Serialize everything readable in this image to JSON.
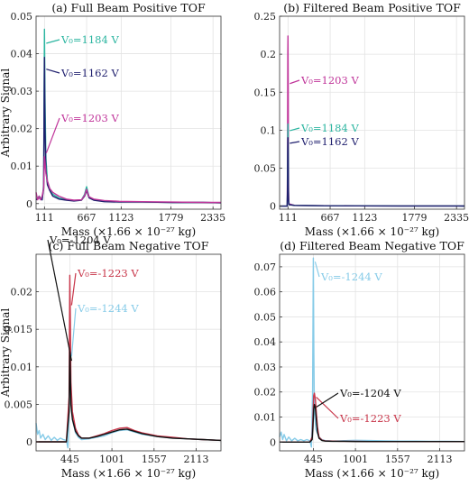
{
  "chart_data": [
    {
      "type": "line",
      "title": "(a) Full Beam Positive TOF",
      "xlabel": "Mass (×1.66 × 10⁻²⁷ kg)",
      "ylabel": "Arbitrary Signal",
      "xlim": [
        0,
        2440
      ],
      "ylim": [
        -0.0015,
        0.05
      ],
      "xticks": [
        111,
        667,
        1123,
        1779,
        2335
      ],
      "yticks": [
        0,
        0.01,
        0.02,
        0.03,
        0.04,
        0.05
      ],
      "ytick_labels": [
        "0",
        "0.01",
        "0.02",
        "0.03",
        "0.04",
        "0.05"
      ],
      "grid": true,
      "series": [
        {
          "name": "V₀=1184 V",
          "color": "#2bb5a0",
          "x": [
            0,
            40,
            80,
            100,
            106,
            111,
            118,
            130,
            150,
            180,
            220,
            300,
            400,
            500,
            600,
            640,
            667,
            700,
            760,
            900,
            1100,
            1400,
            1800,
            2200,
            2440
          ],
          "y": [
            0.001,
            0.002,
            0.001,
            0.005,
            0.03,
            0.0465,
            0.028,
            0.012,
            0.006,
            0.004,
            0.0025,
            0.0015,
            0.001,
            0.0008,
            0.001,
            0.0025,
            0.0045,
            0.0018,
            0.001,
            0.0006,
            0.0005,
            0.0004,
            0.0003,
            0.0003,
            0.0002
          ]
        },
        {
          "name": "V₀=1162 V",
          "color": "#1f1f6e",
          "x": [
            0,
            40,
            80,
            100,
            106,
            111,
            118,
            130,
            150,
            180,
            220,
            300,
            400,
            500,
            600,
            640,
            667,
            700,
            760,
            900,
            1100,
            1400,
            1800,
            2200,
            2440
          ],
          "y": [
            0.001,
            0.0015,
            0.001,
            0.004,
            0.025,
            0.039,
            0.02,
            0.009,
            0.005,
            0.0035,
            0.002,
            0.0012,
            0.0009,
            0.0007,
            0.0009,
            0.002,
            0.0035,
            0.0015,
            0.0009,
            0.0005,
            0.0004,
            0.0004,
            0.0003,
            0.0003,
            0.0002
          ]
        },
        {
          "name": "V₀=1203 V",
          "color": "#c0359a",
          "x": [
            0,
            20,
            40,
            60,
            80,
            100,
            106,
            111,
            118,
            130,
            150,
            180,
            220,
            300,
            400,
            500,
            600,
            640,
            667,
            700,
            760,
            900,
            1100,
            1400,
            1800,
            2200,
            2440
          ],
          "y": [
            0.003,
            0.001,
            0.002,
            0.001,
            0.002,
            0.004,
            0.009,
            0.0125,
            0.011,
            0.008,
            0.006,
            0.004,
            0.003,
            0.002,
            0.0012,
            0.0009,
            0.001,
            0.0022,
            0.0038,
            0.0018,
            0.0012,
            0.0008,
            0.0006,
            0.0005,
            0.0004,
            0.0003,
            0.0003
          ]
        }
      ]
    },
    {
      "type": "line",
      "title": "(b) Filtered Beam Positive TOF",
      "xlabel": "Mass (×1.66 × 10⁻²⁷ kg)",
      "ylabel": "",
      "xlim": [
        0,
        2440
      ],
      "ylim": [
        -0.004,
        0.25
      ],
      "xticks": [
        111,
        667,
        1123,
        1779,
        2335
      ],
      "yticks": [
        0,
        0.05,
        0.1,
        0.15,
        0.2,
        0.25
      ],
      "ytick_labels": [
        "0",
        "0.05",
        "0.1",
        "0.15",
        "0.2",
        "0.25"
      ],
      "grid": true,
      "series": [
        {
          "name": "V₀=1203 V",
          "color": "#c0359a",
          "x": [
            0,
            100,
            104,
            108,
            111,
            114,
            118,
            124,
            200,
            600,
            1000,
            1600,
            2200,
            2440
          ],
          "y": [
            0.0,
            0.0,
            0.04,
            0.2,
            0.224,
            0.15,
            0.02,
            0.003,
            0.001,
            0.0005,
            0.0004,
            0.0003,
            0.0003,
            0.0002
          ]
        },
        {
          "name": "V₀=1184 V",
          "color": "#2bb5a0",
          "x": [
            0,
            100,
            104,
            108,
            111,
            114,
            118,
            124,
            200,
            600,
            1000,
            1600,
            2200,
            2440
          ],
          "y": [
            0.0,
            0.0,
            0.02,
            0.09,
            0.108,
            0.07,
            0.01,
            0.002,
            0.001,
            0.0005,
            0.0004,
            0.0003,
            0.0003,
            0.0002
          ]
        },
        {
          "name": "V₀=1162 V",
          "color": "#1f1f6e",
          "x": [
            0,
            100,
            104,
            108,
            111,
            114,
            118,
            124,
            200,
            600,
            1000,
            1600,
            2200,
            2440
          ],
          "y": [
            0.0,
            0.0,
            0.015,
            0.075,
            0.09,
            0.06,
            0.008,
            0.002,
            0.001,
            0.0005,
            0.0004,
            0.0003,
            0.0003,
            0.0002
          ]
        }
      ]
    },
    {
      "type": "line",
      "title": "(c) Full Beam Negative TOF",
      "xlabel": "Mass (×1.66 × 10⁻²⁷ kg)",
      "ylabel": "Arbitrary Signal",
      "xlim": [
        0,
        2440
      ],
      "ylim": [
        -0.0012,
        0.025
      ],
      "xticks": [
        445,
        1001,
        1557,
        2113
      ],
      "yticks": [
        0,
        0.005,
        0.01,
        0.015,
        0.02
      ],
      "ytick_labels": [
        "0",
        "0.005",
        "0.01",
        "0.015",
        "0.02"
      ],
      "grid": true,
      "series": [
        {
          "name": "V₀=-1244 V",
          "color": "#86cbe8",
          "x": [
            0,
            20,
            40,
            60,
            90,
            120,
            160,
            200,
            240,
            280,
            320,
            360,
            400,
            420,
            436,
            445,
            452,
            460,
            480,
            520,
            560,
            600,
            700,
            800,
            900,
            1000,
            1100,
            1200,
            1300,
            1400,
            1600,
            1800,
            2000,
            2200,
            2440
          ],
          "y": [
            0.0025,
            0.001,
            0.0015,
            0.0005,
            0.001,
            0.0003,
            0.0008,
            0.0002,
            0.0006,
            0.0002,
            0.0005,
            0.0003,
            0.0002,
            -0.0008,
            0.004,
            0.0158,
            0.011,
            0.006,
            0.003,
            0.0012,
            0.0006,
            0.0003,
            0.0004,
            0.0006,
            0.0008,
            0.0012,
            0.0015,
            0.0016,
            0.0013,
            0.001,
            0.0007,
            0.0005,
            0.0004,
            0.0003,
            0.0002
          ]
        },
        {
          "name": "V₀=-1223 V",
          "color": "#c8364a",
          "x": [
            0,
            100,
            200,
            300,
            400,
            436,
            445,
            452,
            460,
            480,
            520,
            560,
            600,
            700,
            800,
            900,
            1000,
            1100,
            1200,
            1300,
            1400,
            1600,
            1800,
            2000,
            2200,
            2440
          ],
          "y": [
            0.0,
            0.0,
            0.0,
            0.0,
            0.0,
            0.006,
            0.0222,
            0.016,
            0.008,
            0.004,
            0.0018,
            0.0009,
            0.0005,
            0.0005,
            0.0008,
            0.0011,
            0.0015,
            0.0018,
            0.0019,
            0.0015,
            0.0012,
            0.0008,
            0.0006,
            0.0004,
            0.0003,
            0.0002
          ]
        },
        {
          "name": "V₀=-1204 V",
          "color": "#111111",
          "x": [
            0,
            100,
            200,
            300,
            400,
            436,
            445,
            452,
            460,
            480,
            520,
            560,
            600,
            700,
            800,
            900,
            1000,
            1100,
            1200,
            1300,
            1400,
            1600,
            1800,
            2000,
            2200,
            2440
          ],
          "y": [
            0.0,
            0.0,
            0.0,
            0.0,
            0.0,
            0.004,
            0.012,
            0.009,
            0.005,
            0.003,
            0.0014,
            0.0008,
            0.0005,
            0.0005,
            0.0007,
            0.001,
            0.0013,
            0.0016,
            0.0017,
            0.0014,
            0.0011,
            0.0007,
            0.0005,
            0.0004,
            0.0003,
            0.0002
          ]
        }
      ]
    },
    {
      "type": "line",
      "title": "(d) Filtered Beam Negative TOF",
      "xlabel": "Mass (×1.66 × 10⁻²⁷ kg)",
      "ylabel": "",
      "xlim": [
        0,
        2440
      ],
      "ylim": [
        -0.0035,
        0.075
      ],
      "xticks": [
        445,
        1001,
        1557,
        2113
      ],
      "yticks": [
        0,
        0.01,
        0.02,
        0.03,
        0.04,
        0.05,
        0.06,
        0.07
      ],
      "ytick_labels": [
        "0",
        "0.01",
        "0.02",
        "0.03",
        "0.04",
        "0.05",
        "0.06",
        "0.07"
      ],
      "grid": true,
      "series": [
        {
          "name": "V₀=-1244 V",
          "color": "#86cbe8",
          "x": [
            0,
            20,
            40,
            60,
            90,
            120,
            160,
            200,
            240,
            280,
            320,
            360,
            400,
            420,
            436,
            445,
            452,
            460,
            480,
            520,
            560,
            600,
            700,
            800,
            900,
            1000,
            1200,
            1400,
            1600,
            1800,
            2000,
            2200,
            2440
          ],
          "y": [
            0.002,
            0.004,
            0.001,
            0.003,
            0.0005,
            0.002,
            0.0005,
            0.0015,
            0.0005,
            0.001,
            0.0005,
            0.001,
            0.0005,
            -0.002,
            0.02,
            0.0735,
            0.035,
            0.012,
            0.005,
            0.002,
            0.001,
            0.0006,
            0.0004,
            0.0005,
            0.0006,
            0.0007,
            0.0006,
            0.0005,
            0.0004,
            0.0004,
            0.0003,
            0.0003,
            0.0002
          ]
        },
        {
          "name": "V₀=-1223 V",
          "color": "#c8364a",
          "x": [
            0,
            100,
            200,
            300,
            400,
            430,
            440,
            450,
            460,
            472,
            485,
            500,
            520,
            560,
            600,
            700,
            800,
            1000,
            1200,
            1600,
            2000,
            2440
          ],
          "y": [
            0.0,
            0.0,
            0.0,
            0.0,
            0.0,
            0.002,
            0.01,
            0.0185,
            0.0195,
            0.017,
            0.012,
            0.006,
            0.002,
            0.0008,
            0.0005,
            0.0004,
            0.0003,
            0.0003,
            0.0002,
            0.0002,
            0.0002,
            0.0002
          ]
        },
        {
          "name": "V₀=-1204 V",
          "color": "#111111",
          "x": [
            0,
            100,
            200,
            300,
            400,
            430,
            440,
            450,
            460,
            472,
            485,
            500,
            520,
            560,
            600,
            700,
            800,
            1000,
            1200,
            1600,
            2000,
            2440
          ],
          "y": [
            0.0,
            0.0,
            0.0,
            0.0,
            0.0,
            0.001,
            0.006,
            0.013,
            0.015,
            0.0135,
            0.009,
            0.004,
            0.0015,
            0.0006,
            0.0004,
            0.0003,
            0.0003,
            0.0002,
            0.0002,
            0.0002,
            0.0002,
            0.0002
          ]
        }
      ]
    }
  ]
}
